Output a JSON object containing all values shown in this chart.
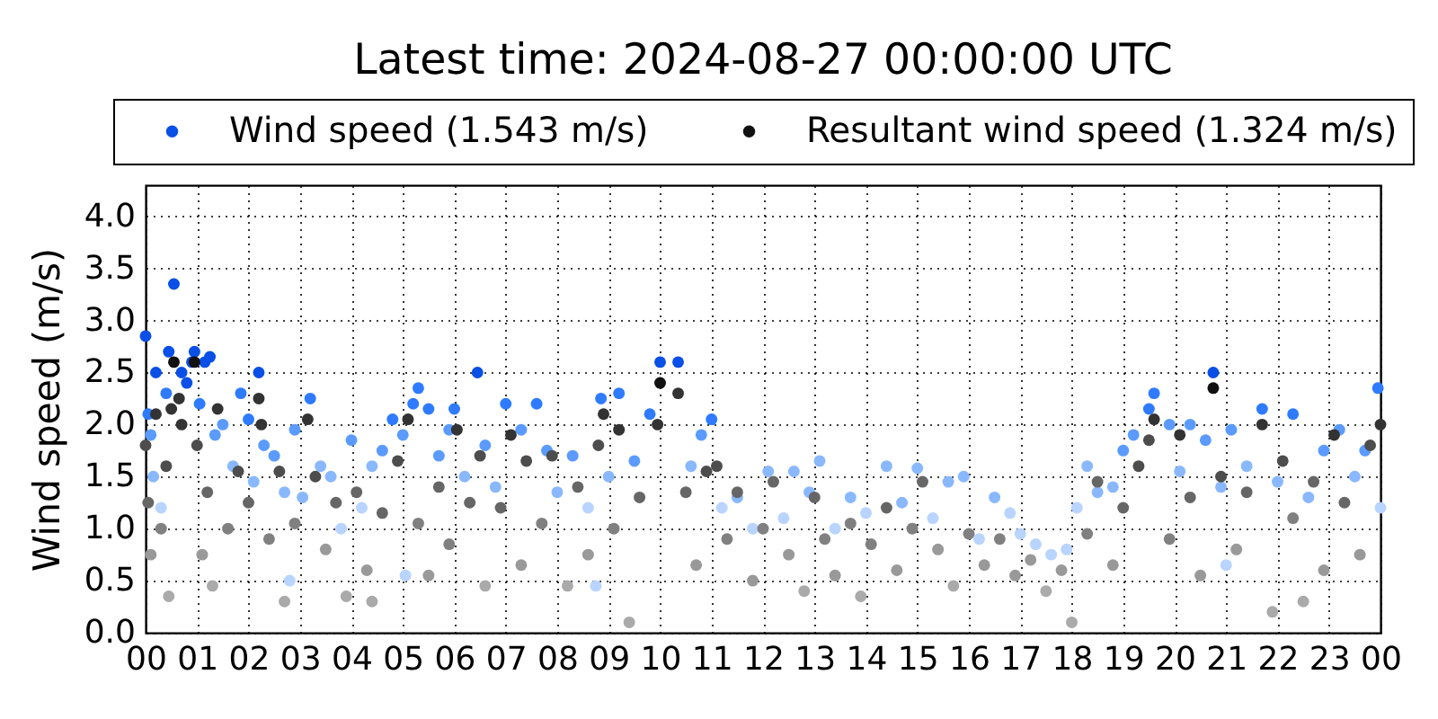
{
  "chart_data": {
    "type": "scatter",
    "title": "Latest time: 2024-08-27 00:00:00 UTC",
    "ylabel": "Wind speed (m/s)",
    "xlim": [
      0,
      24
    ],
    "xticks": [
      {
        "value": 0,
        "label": "00"
      },
      {
        "value": 1,
        "label": "01"
      },
      {
        "value": 2,
        "label": "02"
      },
      {
        "value": 3,
        "label": "03"
      },
      {
        "value": 4,
        "label": "04"
      },
      {
        "value": 5,
        "label": "05"
      },
      {
        "value": 6,
        "label": "06"
      },
      {
        "value": 7,
        "label": "07"
      },
      {
        "value": 8,
        "label": "08"
      },
      {
        "value": 9,
        "label": "09"
      },
      {
        "value": 10,
        "label": "10"
      },
      {
        "value": 11,
        "label": "11"
      },
      {
        "value": 12,
        "label": "12"
      },
      {
        "value": 13,
        "label": "13"
      },
      {
        "value": 14,
        "label": "14"
      },
      {
        "value": 15,
        "label": "15"
      },
      {
        "value": 16,
        "label": "16"
      },
      {
        "value": 17,
        "label": "17"
      },
      {
        "value": 18,
        "label": "18"
      },
      {
        "value": 19,
        "label": "19"
      },
      {
        "value": 20,
        "label": "20"
      },
      {
        "value": 21,
        "label": "21"
      },
      {
        "value": 22,
        "label": "22"
      },
      {
        "value": 23,
        "label": "23"
      },
      {
        "value": 24,
        "label": "00"
      }
    ],
    "ylim": [
      0,
      4.3
    ],
    "yticks": [
      {
        "value": 0,
        "label": "0.0"
      },
      {
        "value": 0.5,
        "label": "0.5"
      },
      {
        "value": 1,
        "label": "1.0"
      },
      {
        "value": 1.5,
        "label": "1.5"
      },
      {
        "value": 2,
        "label": "2.0"
      },
      {
        "value": 2.5,
        "label": "2.5"
      },
      {
        "value": 3,
        "label": "3.0"
      },
      {
        "value": 3.5,
        "label": "3.5"
      },
      {
        "value": 4,
        "label": "4.0"
      }
    ],
    "grid": true,
    "legend": "top",
    "marker": "circle",
    "series": [
      {
        "name": "Wind speed (1.543 m/s)",
        "color": "#0a4fe6",
        "x": [
          0.0,
          0.05,
          0.1,
          0.15,
          0.2,
          0.3,
          0.4,
          0.45,
          0.55,
          0.7,
          0.8,
          0.9,
          0.95,
          1.05,
          1.15,
          1.25,
          1.35,
          1.5,
          1.7,
          1.85,
          2.0,
          2.1,
          2.2,
          2.3,
          2.5,
          2.7,
          2.8,
          2.9,
          3.05,
          3.2,
          3.4,
          3.6,
          3.8,
          4.0,
          4.2,
          4.4,
          4.6,
          4.8,
          5.0,
          5.05,
          5.2,
          5.3,
          5.5,
          5.7,
          5.9,
          6.0,
          6.2,
          6.45,
          6.6,
          6.8,
          7.0,
          7.3,
          7.6,
          7.8,
          8.0,
          8.3,
          8.6,
          8.75,
          8.85,
          9.0,
          9.2,
          9.5,
          9.8,
          10.0,
          10.35,
          10.6,
          10.8,
          11.0,
          11.2,
          11.5,
          11.8,
          12.1,
          12.4,
          12.6,
          12.9,
          13.1,
          13.4,
          13.7,
          14.0,
          14.4,
          14.7,
          15.0,
          15.3,
          15.6,
          15.9,
          16.2,
          16.5,
          16.8,
          17.0,
          17.3,
          17.6,
          17.9,
          18.1,
          18.3,
          18.5,
          18.8,
          19.0,
          19.2,
          19.5,
          19.6,
          19.9,
          20.1,
          20.3,
          20.6,
          20.75,
          20.9,
          21.0,
          21.1,
          21.4,
          21.7,
          22.0,
          22.3,
          22.6,
          22.9,
          23.2,
          23.5,
          23.7,
          23.95,
          24.0
        ],
        "values": [
          2.85,
          2.1,
          1.9,
          1.5,
          2.5,
          1.2,
          2.3,
          2.7,
          3.35,
          2.5,
          2.4,
          2.6,
          2.7,
          2.2,
          2.6,
          2.65,
          1.9,
          2.0,
          1.6,
          2.3,
          2.05,
          1.45,
          2.5,
          1.8,
          1.7,
          1.35,
          0.5,
          1.95,
          1.3,
          2.25,
          1.6,
          1.5,
          1.0,
          1.85,
          1.2,
          1.6,
          1.75,
          2.05,
          1.9,
          0.55,
          2.2,
          2.35,
          2.15,
          1.7,
          1.95,
          2.15,
          1.5,
          2.5,
          1.8,
          1.4,
          2.2,
          1.95,
          2.2,
          1.75,
          1.35,
          1.7,
          1.2,
          0.45,
          2.25,
          1.5,
          2.3,
          1.65,
          2.1,
          2.6,
          2.6,
          1.6,
          1.9,
          2.05,
          1.2,
          1.3,
          1.0,
          1.55,
          1.1,
          1.55,
          1.35,
          1.65,
          1.0,
          1.3,
          1.15,
          1.6,
          1.25,
          1.58,
          1.1,
          1.45,
          1.5,
          0.9,
          1.3,
          1.15,
          0.95,
          0.85,
          0.75,
          0.8,
          1.2,
          1.6,
          1.35,
          1.4,
          1.75,
          1.9,
          2.15,
          2.3,
          2.0,
          1.55,
          2.0,
          1.85,
          2.5,
          1.4,
          0.65,
          1.95,
          1.6,
          2.15,
          1.45,
          2.1,
          1.3,
          1.75,
          1.95,
          1.5,
          1.75,
          2.35,
          1.2
        ],
        "colors": [
          "#0a4fe6",
          "#2f7bff",
          "#5b9bff",
          "#8ab8ff",
          "#0a4fe6",
          "#b8d4ff",
          "#2f7bff",
          "#0a4fe6",
          "#0a4fe6",
          "#0a4fe6",
          "#0a4fe6",
          "#0a4fe6",
          "#0a4fe6",
          "#2f7bff",
          "#0a4fe6",
          "#0a4fe6",
          "#5b9bff",
          "#5b9bff",
          "#8ab8ff",
          "#2f7bff",
          "#2f7bff",
          "#8ab8ff",
          "#0a4fe6",
          "#5b9bff",
          "#5b9bff",
          "#8ab8ff",
          "#b8d4ff",
          "#5b9bff",
          "#8ab8ff",
          "#2f7bff",
          "#8ab8ff",
          "#8ab8ff",
          "#b8d4ff",
          "#5b9bff",
          "#b8d4ff",
          "#8ab8ff",
          "#5b9bff",
          "#2f7bff",
          "#5b9bff",
          "#b8d4ff",
          "#2f7bff",
          "#2f7bff",
          "#2f7bff",
          "#5b9bff",
          "#5b9bff",
          "#2f7bff",
          "#8ab8ff",
          "#0a4fe6",
          "#5b9bff",
          "#8ab8ff",
          "#2f7bff",
          "#5b9bff",
          "#2f7bff",
          "#5b9bff",
          "#8ab8ff",
          "#5b9bff",
          "#b8d4ff",
          "#b8d4ff",
          "#2f7bff",
          "#8ab8ff",
          "#2f7bff",
          "#5b9bff",
          "#2f7bff",
          "#0a4fe6",
          "#0a4fe6",
          "#8ab8ff",
          "#5b9bff",
          "#2f7bff",
          "#b8d4ff",
          "#8ab8ff",
          "#b8d4ff",
          "#8ab8ff",
          "#b8d4ff",
          "#8ab8ff",
          "#8ab8ff",
          "#8ab8ff",
          "#b8d4ff",
          "#8ab8ff",
          "#b8d4ff",
          "#8ab8ff",
          "#8ab8ff",
          "#8ab8ff",
          "#b8d4ff",
          "#8ab8ff",
          "#8ab8ff",
          "#b8d4ff",
          "#8ab8ff",
          "#b8d4ff",
          "#b8d4ff",
          "#b8d4ff",
          "#b8d4ff",
          "#b8d4ff",
          "#b8d4ff",
          "#8ab8ff",
          "#8ab8ff",
          "#8ab8ff",
          "#5b9bff",
          "#5b9bff",
          "#2f7bff",
          "#2f7bff",
          "#5b9bff",
          "#8ab8ff",
          "#5b9bff",
          "#5b9bff",
          "#0a4fe6",
          "#8ab8ff",
          "#b8d4ff",
          "#5b9bff",
          "#8ab8ff",
          "#2f7bff",
          "#8ab8ff",
          "#2f7bff",
          "#8ab8ff",
          "#5b9bff",
          "#5b9bff",
          "#8ab8ff",
          "#5b9bff",
          "#2f7bff",
          "#b8d4ff"
        ]
      },
      {
        "name": "Resultant wind speed (1.324 m/s)",
        "color": "#111111",
        "x": [
          0.0,
          0.05,
          0.1,
          0.2,
          0.3,
          0.4,
          0.45,
          0.5,
          0.55,
          0.65,
          0.7,
          0.95,
          1.0,
          1.1,
          1.2,
          1.3,
          1.4,
          1.6,
          1.8,
          2.0,
          2.2,
          2.25,
          2.4,
          2.6,
          2.7,
          2.9,
          3.15,
          3.3,
          3.5,
          3.7,
          3.9,
          4.1,
          4.3,
          4.4,
          4.6,
          4.9,
          5.1,
          5.3,
          5.5,
          5.7,
          5.9,
          6.05,
          6.3,
          6.5,
          6.6,
          6.9,
          7.1,
          7.3,
          7.4,
          7.7,
          7.9,
          8.2,
          8.4,
          8.6,
          8.8,
          8.9,
          9.1,
          9.2,
          9.4,
          9.6,
          9.95,
          10.0,
          10.35,
          10.5,
          10.7,
          10.9,
          11.1,
          11.3,
          11.5,
          11.8,
          12.0,
          12.2,
          12.5,
          12.8,
          13.0,
          13.2,
          13.4,
          13.7,
          13.9,
          14.1,
          14.4,
          14.6,
          14.9,
          15.1,
          15.4,
          15.7,
          16.0,
          16.3,
          16.6,
          16.9,
          17.2,
          17.5,
          17.8,
          18.0,
          18.3,
          18.5,
          18.8,
          19.0,
          19.3,
          19.5,
          19.6,
          19.9,
          20.1,
          20.3,
          20.5,
          20.75,
          20.9,
          21.2,
          21.4,
          21.7,
          21.9,
          22.1,
          22.3,
          22.5,
          22.7,
          22.9,
          23.1,
          23.3,
          23.6,
          23.8,
          24.0
        ],
        "values": [
          1.8,
          1.25,
          0.75,
          2.1,
          1.0,
          1.6,
          0.35,
          2.15,
          2.6,
          2.25,
          2.0,
          2.6,
          1.8,
          0.75,
          1.35,
          0.45,
          2.15,
          1.0,
          1.55,
          1.25,
          2.25,
          2.0,
          0.9,
          1.55,
          0.3,
          1.05,
          2.05,
          1.5,
          0.8,
          1.25,
          0.35,
          1.35,
          0.6,
          0.3,
          1.15,
          1.65,
          2.05,
          1.05,
          0.55,
          1.4,
          0.85,
          1.95,
          1.25,
          1.7,
          0.45,
          1.2,
          1.9,
          0.65,
          1.65,
          1.05,
          1.7,
          0.45,
          1.4,
          0.75,
          1.8,
          2.1,
          1.0,
          1.95,
          0.1,
          1.3,
          2.0,
          2.4,
          2.3,
          1.35,
          0.65,
          1.55,
          1.6,
          0.9,
          1.35,
          0.5,
          1.0,
          1.45,
          0.75,
          0.4,
          1.3,
          0.9,
          0.55,
          1.05,
          0.35,
          0.85,
          1.2,
          0.6,
          1.0,
          1.45,
          0.8,
          0.45,
          0.95,
          0.65,
          0.9,
          0.55,
          0.7,
          0.4,
          0.6,
          0.1,
          0.95,
          1.45,
          0.65,
          1.2,
          1.6,
          1.85,
          2.05,
          0.9,
          1.9,
          1.3,
          0.55,
          2.35,
          1.5,
          0.8,
          1.35,
          2.0,
          0.2,
          1.65,
          1.1,
          0.3,
          1.45,
          0.6,
          1.9,
          1.25,
          0.75,
          1.8,
          2.0
        ],
        "colors": [
          "#4d4d4d",
          "#666666",
          "#999999",
          "#333333",
          "#808080",
          "#4d4d4d",
          "#aaaaaa",
          "#333333",
          "#111111",
          "#333333",
          "#333333",
          "#111111",
          "#4d4d4d",
          "#999999",
          "#666666",
          "#aaaaaa",
          "#333333",
          "#808080",
          "#4d4d4d",
          "#666666",
          "#333333",
          "#333333",
          "#808080",
          "#4d4d4d",
          "#aaaaaa",
          "#808080",
          "#333333",
          "#4d4d4d",
          "#999999",
          "#666666",
          "#aaaaaa",
          "#666666",
          "#999999",
          "#aaaaaa",
          "#666666",
          "#4d4d4d",
          "#333333",
          "#808080",
          "#999999",
          "#666666",
          "#808080",
          "#333333",
          "#666666",
          "#4d4d4d",
          "#aaaaaa",
          "#666666",
          "#333333",
          "#999999",
          "#4d4d4d",
          "#808080",
          "#4d4d4d",
          "#aaaaaa",
          "#666666",
          "#999999",
          "#4d4d4d",
          "#333333",
          "#808080",
          "#333333",
          "#aaaaaa",
          "#666666",
          "#333333",
          "#111111",
          "#333333",
          "#666666",
          "#999999",
          "#4d4d4d",
          "#4d4d4d",
          "#808080",
          "#666666",
          "#999999",
          "#808080",
          "#666666",
          "#999999",
          "#aaaaaa",
          "#666666",
          "#808080",
          "#999999",
          "#808080",
          "#aaaaaa",
          "#808080",
          "#666666",
          "#999999",
          "#808080",
          "#666666",
          "#999999",
          "#aaaaaa",
          "#808080",
          "#999999",
          "#808080",
          "#999999",
          "#999999",
          "#aaaaaa",
          "#999999",
          "#aaaaaa",
          "#808080",
          "#666666",
          "#999999",
          "#666666",
          "#4d4d4d",
          "#4d4d4d",
          "#333333",
          "#808080",
          "#333333",
          "#666666",
          "#999999",
          "#111111",
          "#4d4d4d",
          "#999999",
          "#666666",
          "#333333",
          "#aaaaaa",
          "#4d4d4d",
          "#808080",
          "#aaaaaa",
          "#666666",
          "#999999",
          "#333333",
          "#666666",
          "#999999",
          "#4d4d4d",
          "#333333"
        ]
      }
    ]
  }
}
